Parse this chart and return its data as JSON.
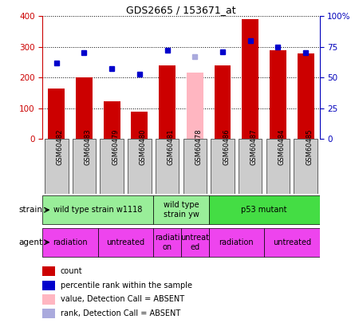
{
  "title": "GDS2665 / 153671_at",
  "samples": [
    "GSM60482",
    "GSM60483",
    "GSM60479",
    "GSM60480",
    "GSM60481",
    "GSM60478",
    "GSM60486",
    "GSM60487",
    "GSM60484",
    "GSM60485"
  ],
  "bar_values": [
    163,
    200,
    122,
    88,
    240,
    215,
    240,
    390,
    290,
    278
  ],
  "bar_colors": [
    "#cc0000",
    "#cc0000",
    "#cc0000",
    "#cc0000",
    "#cc0000",
    "#ffb6c1",
    "#cc0000",
    "#cc0000",
    "#cc0000",
    "#cc0000"
  ],
  "dot_values": [
    62,
    70,
    57,
    53,
    72,
    67,
    71,
    80,
    75,
    70
  ],
  "dot_colors": [
    "#0000cc",
    "#0000cc",
    "#0000cc",
    "#0000cc",
    "#0000cc",
    "#aaaadd",
    "#0000cc",
    "#0000cc",
    "#0000cc",
    "#0000cc"
  ],
  "ylim_left": [
    0,
    400
  ],
  "ylim_right": [
    0,
    100
  ],
  "yticks_left": [
    0,
    100,
    200,
    300,
    400
  ],
  "ytick_labels_left": [
    "0",
    "100",
    "200",
    "300",
    "400"
  ],
  "yticks_right": [
    0,
    25,
    50,
    75,
    100
  ],
  "ytick_labels_right": [
    "0",
    "25",
    "50",
    "75",
    "100%"
  ],
  "strain_groups": [
    {
      "label": "wild type strain w1118",
      "start": 0,
      "end": 4,
      "color": "#99ee99"
    },
    {
      "label": "wild type\nstrain yw",
      "start": 4,
      "end": 6,
      "color": "#99ee99"
    },
    {
      "label": "p53 mutant",
      "start": 6,
      "end": 10,
      "color": "#44dd44"
    }
  ],
  "agent_groups": [
    {
      "label": "radiation",
      "start": 0,
      "end": 2,
      "color": "#ee44ee"
    },
    {
      "label": "untreated",
      "start": 2,
      "end": 4,
      "color": "#ee44ee"
    },
    {
      "label": "radiati\non",
      "start": 4,
      "end": 5,
      "color": "#ee44ee"
    },
    {
      "label": "untreat\ned",
      "start": 5,
      "end": 6,
      "color": "#ee44ee"
    },
    {
      "label": "radiation",
      "start": 6,
      "end": 8,
      "color": "#ee44ee"
    },
    {
      "label": "untreated",
      "start": 8,
      "end": 10,
      "color": "#ee44ee"
    }
  ],
  "legend_items": [
    {
      "label": "count",
      "color": "#cc0000"
    },
    {
      "label": "percentile rank within the sample",
      "color": "#0000cc"
    },
    {
      "label": "value, Detection Call = ABSENT",
      "color": "#ffb6c1"
    },
    {
      "label": "rank, Detection Call = ABSENT",
      "color": "#aaaadd"
    }
  ],
  "left_ycolor": "#cc0000",
  "right_ycolor": "#0000bb",
  "xlabel_bg": "#cccccc"
}
